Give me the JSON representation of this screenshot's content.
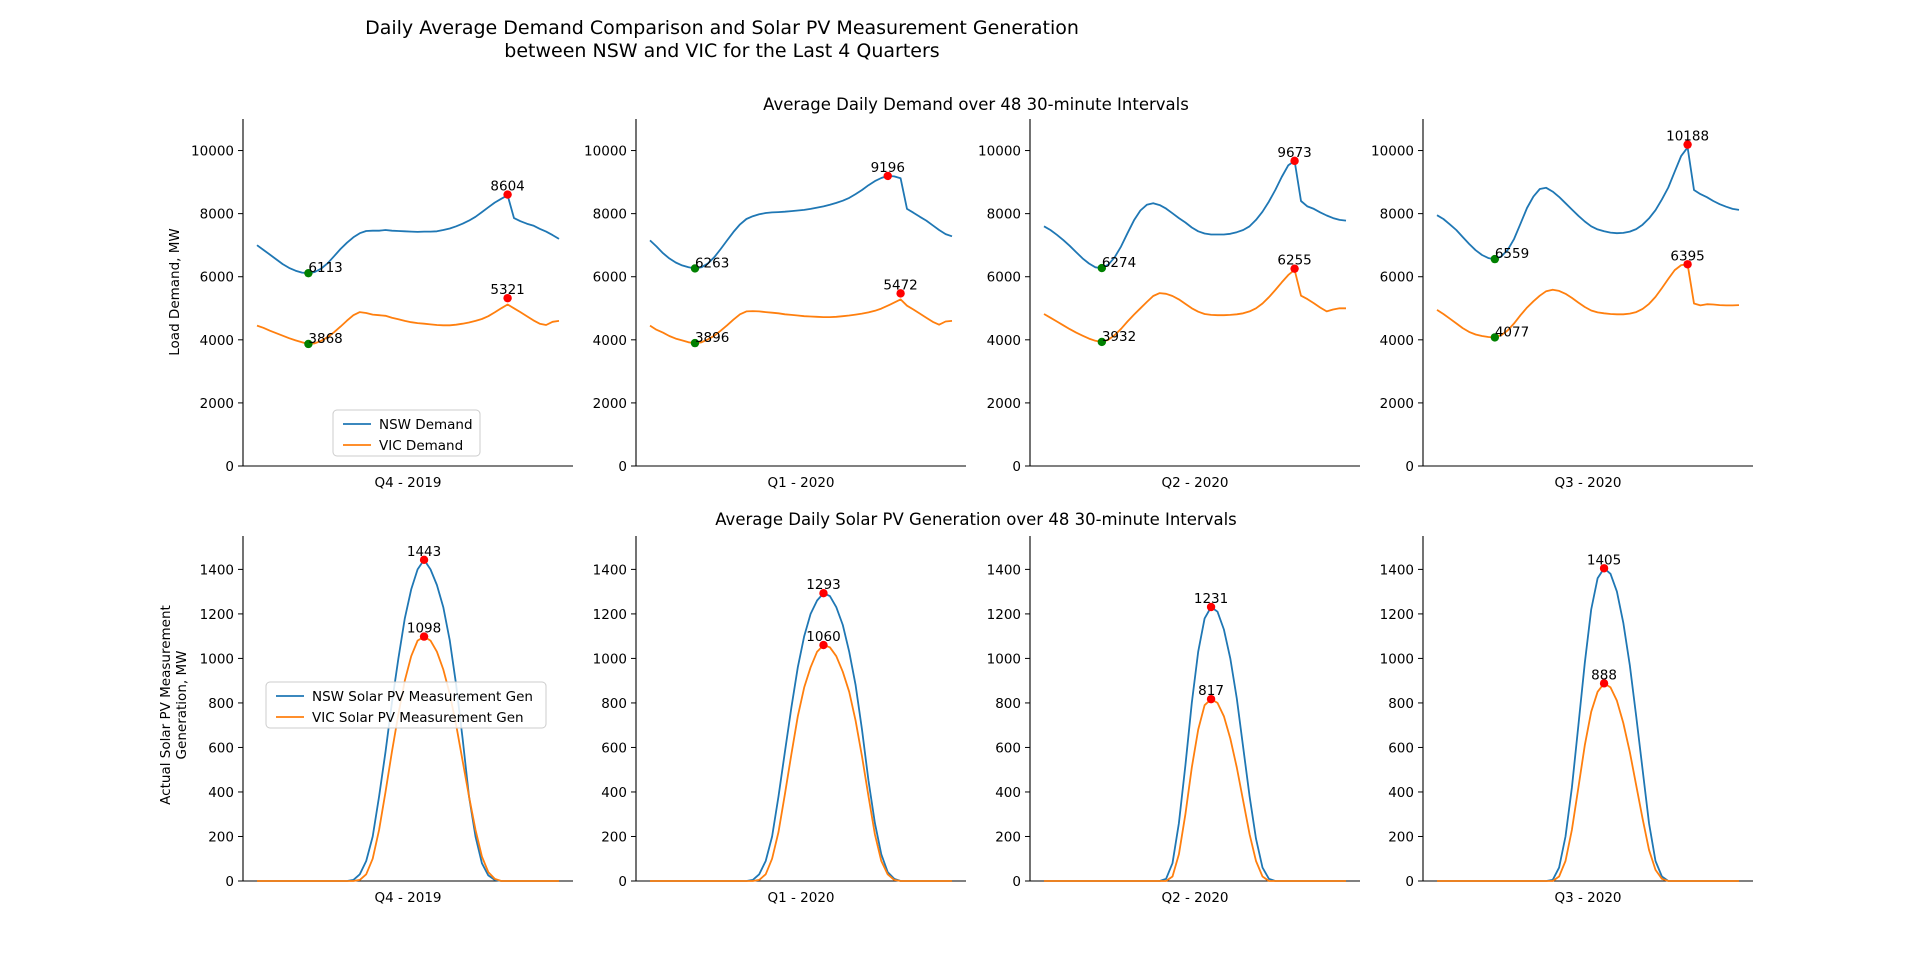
{
  "figure": {
    "title_line1": "Daily Average Demand Comparison and Solar PV Measurement Generation",
    "title_line2": "between NSW and VIC for the Last 4 Quarters",
    "colors": {
      "nsw": "#1f77b4",
      "vic": "#ff7f0e",
      "max_marker": "#ff0000",
      "min_marker": "#008000",
      "axis": "#000000"
    }
  },
  "demand": {
    "title": "Average Daily Demand over 48 30-minute Intervals",
    "ylabel": "Load Demand, MW",
    "legend": [
      "NSW Demand",
      "VIC Demand"
    ]
  },
  "solar": {
    "title": "Average Daily Solar PV Generation over 48 30-minute Intervals",
    "ylabel_line1": "Actual Solar PV Measurement",
    "ylabel_line2": "Generation, MW",
    "legend": [
      "NSW Solar PV Measurement Gen",
      "VIC Solar PV Measurement Gen"
    ]
  },
  "chart_data": [
    {
      "type": "line",
      "group": "demand",
      "quarter": "Q4 - 2019",
      "x": "interval 1-48",
      "ylim": [
        0,
        11000
      ],
      "yticks": [
        0,
        2000,
        4000,
        6000,
        8000,
        10000
      ],
      "legend": "lower-center",
      "grid": false,
      "series": [
        {
          "name": "NSW Demand",
          "values": [
            7000,
            6850,
            6700,
            6550,
            6400,
            6280,
            6190,
            6130,
            6113,
            6150,
            6260,
            6430,
            6650,
            6880,
            7080,
            7250,
            7380,
            7450,
            7460,
            7460,
            7480,
            7460,
            7450,
            7440,
            7430,
            7420,
            7430,
            7430,
            7440,
            7480,
            7530,
            7600,
            7680,
            7780,
            7900,
            8050,
            8200,
            8350,
            8470,
            8580,
            8604,
            8590,
            8560,
            8500,
            8420,
            8300,
            8130,
            7950
          ],
          "tail": [
            7860,
            7760,
            7680,
            7620,
            7520,
            7430,
            7320,
            7200
          ],
          "max": 8604,
          "min": 6113
        },
        {
          "name": "VIC Demand",
          "values": [
            4450,
            4380,
            4290,
            4210,
            4130,
            4050,
            3980,
            3920,
            3868,
            3890,
            3970,
            4090,
            4240,
            4420,
            4610,
            4780,
            4880,
            4850,
            4800,
            4780,
            4760,
            4700,
            4650,
            4600,
            4560,
            4530,
            4510,
            4490,
            4470,
            4460,
            4460,
            4480,
            4510,
            4550,
            4600,
            4660,
            4750,
            4870,
            5000,
            5120,
            5230,
            5300,
            5321,
            5310,
            5280,
            5250,
            5200,
            5100
          ],
          "tail": [
            5000,
            4880,
            4750,
            4620,
            4510,
            4470,
            4570,
            4600
          ],
          "max": 5321,
          "min": 3868
        }
      ]
    },
    {
      "type": "line",
      "group": "demand",
      "quarter": "Q1 - 2020",
      "ylim": [
        0,
        11000
      ],
      "grid": false,
      "series": [
        {
          "name": "NSW Demand",
          "values": [
            7150,
            6960,
            6750,
            6580,
            6450,
            6360,
            6300,
            6263,
            6300,
            6420,
            6620,
            6880,
            7150,
            7420,
            7660,
            7830,
            7920,
            7980,
            8020,
            8040,
            8050,
            8060,
            8080,
            8100,
            8120,
            8150,
            8190,
            8230,
            8280,
            8340,
            8410,
            8500,
            8620,
            8750,
            8900,
            9030,
            9130,
            9196,
            9180,
            9120,
            9050,
            8980,
            8900,
            8820,
            8700,
            8560,
            8400,
            8250
          ],
          "tail": [
            8150,
            8030,
            7900,
            7780,
            7630,
            7480,
            7350,
            7280
          ],
          "max": 9196,
          "min": 6263
        },
        {
          "name": "VIC Demand",
          "values": [
            4450,
            4320,
            4230,
            4120,
            4040,
            3980,
            3920,
            3896,
            3920,
            4010,
            4130,
            4290,
            4460,
            4640,
            4810,
            4900,
            4910,
            4900,
            4880,
            4860,
            4840,
            4810,
            4790,
            4770,
            4750,
            4740,
            4730,
            4720,
            4720,
            4730,
            4750,
            4770,
            4800,
            4830,
            4870,
            4920,
            4990,
            5080,
            5180,
            5280,
            5370,
            5440,
            5472,
            5440,
            5390,
            5340,
            5280,
            5180
          ],
          "tail": [
            5080,
            4960,
            4830,
            4700,
            4570,
            4480,
            4580,
            4600
          ],
          "max": 5472,
          "min": 3896
        }
      ]
    },
    {
      "type": "line",
      "group": "demand",
      "quarter": "Q2 - 2020",
      "ylim": [
        0,
        11000
      ],
      "grid": false,
      "series": [
        {
          "name": "NSW Demand",
          "values": [
            7600,
            7480,
            7330,
            7160,
            6980,
            6780,
            6580,
            6420,
            6300,
            6274,
            6380,
            6620,
            6960,
            7380,
            7790,
            8100,
            8280,
            8330,
            8270,
            8160,
            8010,
            7860,
            7720,
            7560,
            7440,
            7370,
            7340,
            7340,
            7340,
            7360,
            7410,
            7480,
            7600,
            7800,
            8060,
            8380,
            8750,
            9160,
            9530,
            9673,
            9620,
            9470,
            9320,
            9150,
            9000,
            8850,
            8700,
            8560
          ],
          "tail": [
            8400,
            8230,
            8150,
            8040,
            7940,
            7860,
            7800,
            7780
          ],
          "max": 9673,
          "min": 6274
        },
        {
          "name": "VIC Demand",
          "values": [
            4820,
            4700,
            4580,
            4460,
            4340,
            4230,
            4130,
            4040,
            3970,
            3932,
            4000,
            4150,
            4350,
            4580,
            4800,
            5000,
            5200,
            5390,
            5480,
            5460,
            5390,
            5280,
            5140,
            5000,
            4890,
            4820,
            4790,
            4780,
            4780,
            4790,
            4810,
            4840,
            4900,
            5000,
            5150,
            5350,
            5580,
            5820,
            6050,
            6220,
            6255,
            6200,
            6100,
            5990,
            5870,
            5750,
            5630,
            5500
          ],
          "tail": [
            5400,
            5290,
            5160,
            5020,
            4900,
            4960,
            5000,
            5000
          ],
          "max": 6255,
          "min": 3932
        }
      ]
    },
    {
      "type": "line",
      "group": "demand",
      "quarter": "Q3 - 2020",
      "ylim": [
        0,
        11000
      ],
      "grid": false,
      "series": [
        {
          "name": "NSW Demand",
          "values": [
            7950,
            7830,
            7660,
            7480,
            7260,
            7040,
            6840,
            6690,
            6590,
            6559,
            6640,
            6850,
            7200,
            7680,
            8180,
            8540,
            8780,
            8820,
            8700,
            8530,
            8330,
            8130,
            7930,
            7750,
            7600,
            7500,
            7440,
            7400,
            7380,
            7390,
            7430,
            7510,
            7650,
            7850,
            8110,
            8450,
            8830,
            9330,
            9830,
            10100,
            10188,
            10050,
            9860,
            9660,
            9480,
            9300,
            9090,
            8880
          ],
          "tail": [
            8750,
            8620,
            8520,
            8400,
            8300,
            8220,
            8150,
            8120
          ],
          "max": 10188,
          "min": 6559
        },
        {
          "name": "VIC Demand",
          "values": [
            4950,
            4820,
            4670,
            4520,
            4370,
            4250,
            4170,
            4120,
            4090,
            4077,
            4150,
            4300,
            4520,
            4780,
            5020,
            5220,
            5400,
            5540,
            5590,
            5550,
            5460,
            5330,
            5180,
            5040,
            4930,
            4870,
            4840,
            4820,
            4810,
            4810,
            4830,
            4880,
            4980,
            5140,
            5360,
            5640,
            5930,
            6210,
            6370,
            6395,
            6320,
            6190,
            6030,
            5880,
            5730,
            5580,
            5420,
            5260
          ],
          "tail": [
            5150,
            5090,
            5130,
            5120,
            5100,
            5090,
            5090,
            5100
          ],
          "max": 6395,
          "min": 4077
        }
      ]
    },
    {
      "type": "line",
      "group": "solar",
      "quarter": "Q4 - 2019",
      "ylim": [
        0,
        1550
      ],
      "yticks": [
        0,
        200,
        400,
        600,
        800,
        1000,
        1200,
        1400
      ],
      "legend": "center-left",
      "grid": false,
      "series": [
        {
          "name": "NSW Solar PV Measurement Gen",
          "values": [
            0,
            0,
            0,
            0,
            0,
            0,
            0,
            0,
            0,
            0,
            0,
            0,
            0,
            0,
            0,
            5,
            30,
            90,
            200,
            380,
            580,
            800,
            1000,
            1180,
            1310,
            1400,
            1443,
            1400,
            1330,
            1230,
            1080,
            880,
            640,
            380,
            200,
            80,
            25,
            5,
            0,
            0,
            0,
            0,
            0,
            0,
            0,
            0,
            0,
            0
          ],
          "max": 1443
        },
        {
          "name": "VIC Solar PV Measurement Gen",
          "values": [
            0,
            0,
            0,
            0,
            0,
            0,
            0,
            0,
            0,
            0,
            0,
            0,
            0,
            0,
            0,
            0,
            5,
            30,
            100,
            230,
            400,
            580,
            750,
            900,
            1010,
            1080,
            1098,
            1080,
            1030,
            950,
            840,
            700,
            540,
            380,
            230,
            110,
            40,
            10,
            0,
            0,
            0,
            0,
            0,
            0,
            0,
            0,
            0,
            0
          ],
          "max": 1098
        }
      ]
    },
    {
      "type": "line",
      "group": "solar",
      "quarter": "Q1 - 2020",
      "ylim": [
        0,
        1550
      ],
      "grid": false,
      "series": [
        {
          "name": "NSW Solar PV Measurement Gen",
          "values": [
            0,
            0,
            0,
            0,
            0,
            0,
            0,
            0,
            0,
            0,
            0,
            0,
            0,
            0,
            0,
            0,
            5,
            30,
            90,
            200,
            380,
            580,
            780,
            960,
            1100,
            1200,
            1260,
            1293,
            1280,
            1230,
            1150,
            1030,
            880,
            680,
            450,
            260,
            120,
            40,
            10,
            0,
            0,
            0,
            0,
            0,
            0,
            0,
            0,
            0
          ],
          "max": 1293
        },
        {
          "name": "VIC Solar PV Measurement Gen",
          "values": [
            0,
            0,
            0,
            0,
            0,
            0,
            0,
            0,
            0,
            0,
            0,
            0,
            0,
            0,
            0,
            0,
            0,
            5,
            30,
            100,
            220,
            390,
            570,
            740,
            870,
            960,
            1030,
            1060,
            1050,
            1010,
            940,
            850,
            720,
            560,
            380,
            210,
            90,
            30,
            5,
            0,
            0,
            0,
            0,
            0,
            0,
            0,
            0,
            0
          ],
          "max": 1060
        }
      ]
    },
    {
      "type": "line",
      "group": "solar",
      "quarter": "Q2 - 2020",
      "ylim": [
        0,
        1550
      ],
      "grid": false,
      "series": [
        {
          "name": "NSW Solar PV Measurement Gen",
          "values": [
            0,
            0,
            0,
            0,
            0,
            0,
            0,
            0,
            0,
            0,
            0,
            0,
            0,
            0,
            0,
            0,
            0,
            0,
            0,
            10,
            80,
            260,
            520,
            800,
            1030,
            1180,
            1231,
            1210,
            1130,
            1000,
            820,
            600,
            380,
            190,
            60,
            10,
            0,
            0,
            0,
            0,
            0,
            0,
            0,
            0,
            0,
            0,
            0,
            0
          ],
          "max": 1231
        },
        {
          "name": "VIC Solar PV Measurement Gen",
          "values": [
            0,
            0,
            0,
            0,
            0,
            0,
            0,
            0,
            0,
            0,
            0,
            0,
            0,
            0,
            0,
            0,
            0,
            0,
            0,
            0,
            20,
            120,
            300,
            510,
            680,
            790,
            817,
            800,
            740,
            640,
            510,
            360,
            210,
            90,
            20,
            0,
            0,
            0,
            0,
            0,
            0,
            0,
            0,
            0,
            0,
            0,
            0,
            0
          ],
          "max": 817
        }
      ]
    },
    {
      "type": "line",
      "group": "solar",
      "quarter": "Q3 - 2020",
      "ylim": [
        0,
        1550
      ],
      "grid": false,
      "series": [
        {
          "name": "NSW Solar PV Measurement Gen",
          "values": [
            0,
            0,
            0,
            0,
            0,
            0,
            0,
            0,
            0,
            0,
            0,
            0,
            0,
            0,
            0,
            0,
            0,
            0,
            5,
            60,
            200,
            420,
            700,
            980,
            1220,
            1360,
            1405,
            1380,
            1300,
            1160,
            970,
            740,
            500,
            260,
            90,
            20,
            0,
            0,
            0,
            0,
            0,
            0,
            0,
            0,
            0,
            0,
            0,
            0
          ],
          "max": 1405
        },
        {
          "name": "VIC Solar PV Measurement Gen",
          "values": [
            0,
            0,
            0,
            0,
            0,
            0,
            0,
            0,
            0,
            0,
            0,
            0,
            0,
            0,
            0,
            0,
            0,
            0,
            0,
            20,
            90,
            230,
            420,
            610,
            760,
            850,
            888,
            870,
            810,
            710,
            580,
            430,
            280,
            140,
            50,
            10,
            0,
            0,
            0,
            0,
            0,
            0,
            0,
            0,
            0,
            0,
            0,
            0
          ],
          "max": 888
        }
      ]
    }
  ]
}
